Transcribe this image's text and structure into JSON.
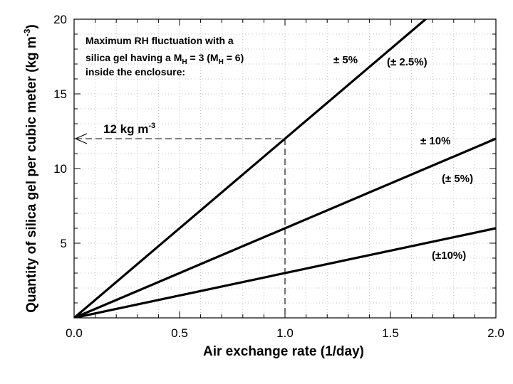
{
  "chart_data": {
    "type": "line",
    "xlabel": "Air exchange rate (1/day)",
    "ylabel_main": "Quantity of silica gel per cubic meter (kg m",
    "ylabel_sup": "-3",
    "ylabel_close": ")",
    "xlim": [
      0.0,
      2.0
    ],
    "ylim": [
      0,
      20
    ],
    "x_ticks": [
      0.0,
      0.5,
      1.0,
      1.5,
      2.0
    ],
    "x_tick_labels": [
      "0.0",
      "0.5",
      "1.0",
      "1.5",
      "2.0"
    ],
    "y_ticks": [
      5,
      10,
      15,
      20
    ],
    "y_tick_labels": [
      "5",
      "10",
      "15",
      "20"
    ],
    "grid": true,
    "series": [
      {
        "x": [
          0.0,
          2.0
        ],
        "y": [
          0,
          24
        ],
        "label_primary": "± 5%",
        "label_secondary": "(± 2.5%)"
      },
      {
        "x": [
          0.0,
          2.0
        ],
        "y": [
          0,
          12
        ],
        "label_primary": "± 10%",
        "label_secondary": "(± 5%)"
      },
      {
        "x": [
          0.0,
          2.0
        ],
        "y": [
          0,
          6
        ],
        "label_secondary": "(±10%)"
      }
    ],
    "annotation": {
      "text_main": "12 kg m",
      "text_sup": "-3",
      "x": 1.0,
      "y": 12
    },
    "info_box": {
      "line1": "Maximum RH fluctuation with a",
      "line2_a": "silica gel having a M",
      "line2_sub1": "H",
      "line2_b": " = 3 (M",
      "line2_sub2": "H",
      "line2_c": " = 6)",
      "line3": "inside the enclosure:"
    }
  }
}
